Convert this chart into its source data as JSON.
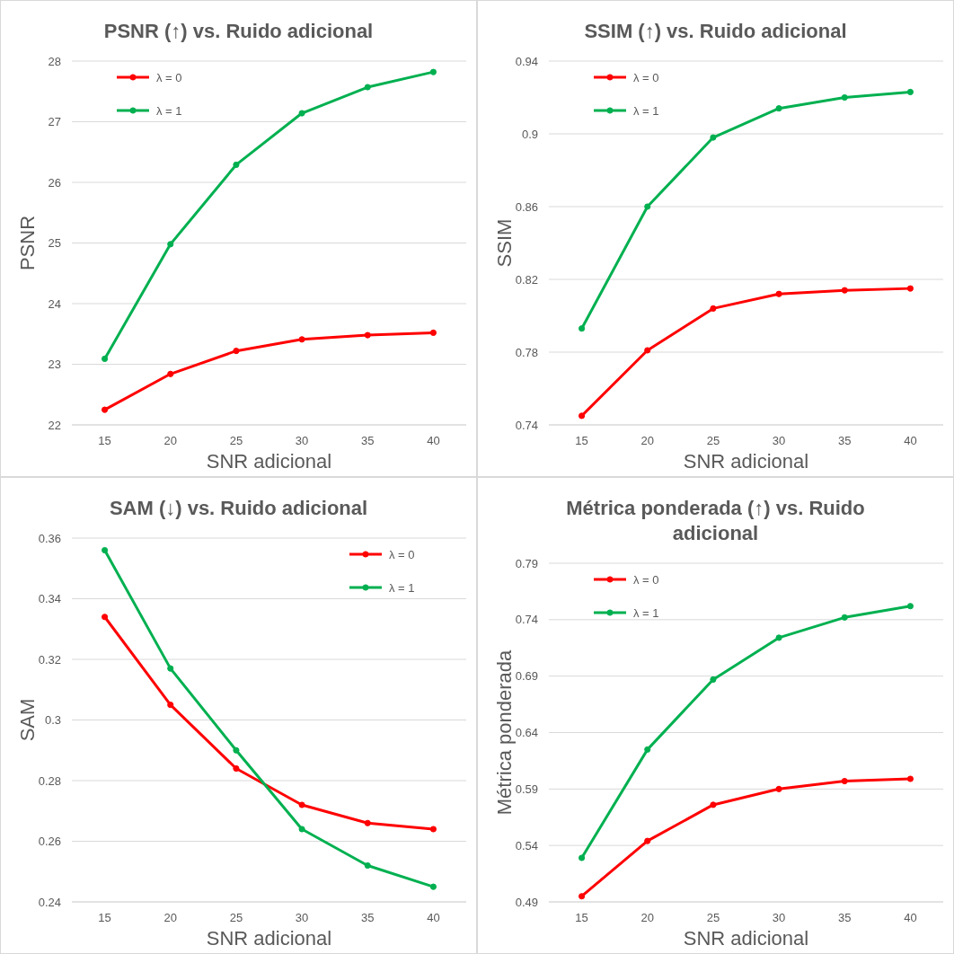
{
  "chart_data": [
    {
      "type": "line",
      "title": "PSNR (↑) vs. Ruido adicional",
      "xlabel": "SNR adicional",
      "ylabel": "PSNR",
      "categories": [
        "15",
        "20",
        "25",
        "30",
        "35",
        "40"
      ],
      "ylim": [
        22,
        28
      ],
      "yticks": [
        22,
        23,
        24,
        25,
        26,
        27,
        28
      ],
      "grid": "y",
      "legend": "top left",
      "marker": "circle",
      "series": [
        {
          "name": "λ = 0",
          "color": "#ff0000",
          "values": [
            22.25,
            22.84,
            23.22,
            23.41,
            23.48,
            23.52
          ]
        },
        {
          "name": "λ = 1",
          "color": "#00b050",
          "values": [
            23.09,
            24.98,
            26.29,
            27.14,
            27.57,
            27.82
          ]
        }
      ]
    },
    {
      "type": "line",
      "title": "SSIM (↑) vs. Ruido adicional",
      "xlabel": "SNR adicional",
      "ylabel": "SSIM",
      "categories": [
        "15",
        "20",
        "25",
        "30",
        "35",
        "40"
      ],
      "ylim": [
        0.74,
        0.94
      ],
      "yticks": [
        0.74,
        0.78,
        0.82,
        0.86,
        0.9,
        0.94
      ],
      "grid": "y",
      "legend": "top left",
      "marker": "circle",
      "series": [
        {
          "name": "λ = 0",
          "color": "#ff0000",
          "values": [
            0.745,
            0.781,
            0.804,
            0.812,
            0.814,
            0.815
          ]
        },
        {
          "name": "λ = 1",
          "color": "#00b050",
          "values": [
            0.793,
            0.86,
            0.898,
            0.914,
            0.92,
            0.923
          ]
        }
      ]
    },
    {
      "type": "line",
      "title": "SAM (↓) vs. Ruido adicional",
      "xlabel": "SNR adicional",
      "ylabel": "SAM",
      "categories": [
        "15",
        "20",
        "25",
        "30",
        "35",
        "40"
      ],
      "ylim": [
        0.24,
        0.36
      ],
      "yticks": [
        0.24,
        0.26,
        0.28,
        0.3,
        0.32,
        0.34,
        0.36
      ],
      "grid": "y",
      "legend": "top right",
      "marker": "circle",
      "series": [
        {
          "name": "λ = 0",
          "color": "#ff0000",
          "values": [
            0.334,
            0.305,
            0.284,
            0.272,
            0.266,
            0.264
          ]
        },
        {
          "name": "λ = 1",
          "color": "#00b050",
          "values": [
            0.356,
            0.317,
            0.29,
            0.264,
            0.252,
            0.245
          ]
        }
      ]
    },
    {
      "type": "line",
      "title": "Métrica ponderada (↑) vs. Ruido adicional",
      "xlabel": "SNR adicional",
      "ylabel": "Métrica ponderada",
      "categories": [
        "15",
        "20",
        "25",
        "30",
        "35",
        "40"
      ],
      "ylim": [
        0.49,
        0.79
      ],
      "yticks": [
        0.49,
        0.54,
        0.59,
        0.64,
        0.69,
        0.74,
        0.79
      ],
      "grid": "y",
      "legend": "top left",
      "marker": "circle",
      "series": [
        {
          "name": "λ = 0",
          "color": "#ff0000",
          "values": [
            0.495,
            0.544,
            0.576,
            0.59,
            0.597,
            0.599
          ]
        },
        {
          "name": "λ = 1",
          "color": "#00b050",
          "values": [
            0.529,
            0.625,
            0.687,
            0.724,
            0.742,
            0.752
          ]
        }
      ]
    }
  ]
}
